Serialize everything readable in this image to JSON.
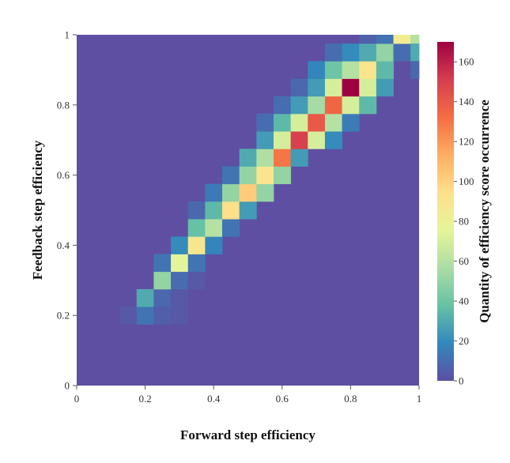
{
  "chart_data": {
    "type": "heatmap",
    "title": "",
    "xlabel": "Forward step efficiency",
    "ylabel": "Feedback step efficiency",
    "colorbar_label": "Quantity of efficiency score occurrence",
    "xlim": [
      0,
      1
    ],
    "ylim": [
      0,
      1
    ],
    "x_ticks": [
      "0",
      "0.2",
      "0.4",
      "0.6",
      "0.8",
      "1"
    ],
    "y_ticks": [
      "0",
      "0.2",
      "0.4",
      "0.6",
      "0.8",
      "1"
    ],
    "colorbar_range": [
      0,
      170
    ],
    "colorbar_ticks": [
      "0",
      "20",
      "40",
      "60",
      "80",
      "100",
      "120",
      "140",
      "160"
    ],
    "colorscale": "Spectral (reversed)",
    "grid": false,
    "bins": 20,
    "cells": [
      [
        0.15,
        0.2,
        3
      ],
      [
        0.2,
        0.2,
        12
      ],
      [
        0.25,
        0.2,
        5
      ],
      [
        0.3,
        0.2,
        3
      ],
      [
        0.2,
        0.25,
        30
      ],
      [
        0.25,
        0.25,
        8
      ],
      [
        0.3,
        0.25,
        3
      ],
      [
        0.25,
        0.3,
        50
      ],
      [
        0.3,
        0.3,
        10
      ],
      [
        0.35,
        0.3,
        3
      ],
      [
        0.25,
        0.35,
        12
      ],
      [
        0.3,
        0.35,
        75
      ],
      [
        0.35,
        0.35,
        12
      ],
      [
        0.3,
        0.4,
        20
      ],
      [
        0.35,
        0.4,
        88
      ],
      [
        0.4,
        0.4,
        18
      ],
      [
        0.35,
        0.45,
        38
      ],
      [
        0.4,
        0.45,
        60
      ],
      [
        0.45,
        0.45,
        12
      ],
      [
        0.35,
        0.5,
        8
      ],
      [
        0.4,
        0.5,
        35
      ],
      [
        0.45,
        0.5,
        95
      ],
      [
        0.5,
        0.5,
        25
      ],
      [
        0.4,
        0.55,
        14
      ],
      [
        0.45,
        0.55,
        50
      ],
      [
        0.5,
        0.55,
        102
      ],
      [
        0.55,
        0.55,
        50
      ],
      [
        0.45,
        0.6,
        12
      ],
      [
        0.5,
        0.6,
        50
      ],
      [
        0.55,
        0.6,
        90
      ],
      [
        0.6,
        0.6,
        50
      ],
      [
        0.5,
        0.65,
        30
      ],
      [
        0.55,
        0.65,
        58
      ],
      [
        0.6,
        0.65,
        130
      ],
      [
        0.65,
        0.65,
        25
      ],
      [
        0.55,
        0.7,
        25
      ],
      [
        0.6,
        0.7,
        70
      ],
      [
        0.65,
        0.7,
        150
      ],
      [
        0.7,
        0.7,
        70
      ],
      [
        0.75,
        0.7,
        20
      ],
      [
        0.55,
        0.75,
        10
      ],
      [
        0.6,
        0.75,
        35
      ],
      [
        0.65,
        0.75,
        70
      ],
      [
        0.7,
        0.75,
        140
      ],
      [
        0.75,
        0.75,
        60
      ],
      [
        0.8,
        0.75,
        15
      ],
      [
        0.6,
        0.8,
        10
      ],
      [
        0.65,
        0.8,
        25
      ],
      [
        0.7,
        0.8,
        55
      ],
      [
        0.75,
        0.8,
        135
      ],
      [
        0.8,
        0.8,
        70
      ],
      [
        0.85,
        0.8,
        35
      ],
      [
        0.65,
        0.85,
        8
      ],
      [
        0.7,
        0.85,
        25
      ],
      [
        0.75,
        0.85,
        70
      ],
      [
        0.8,
        0.85,
        170
      ],
      [
        0.85,
        0.85,
        70
      ],
      [
        0.9,
        0.85,
        25
      ],
      [
        0.7,
        0.9,
        18
      ],
      [
        0.75,
        0.9,
        40
      ],
      [
        0.8,
        0.9,
        60
      ],
      [
        0.85,
        0.9,
        90
      ],
      [
        0.9,
        0.9,
        35
      ],
      [
        0.75,
        0.95,
        10
      ],
      [
        0.8,
        0.95,
        20
      ],
      [
        0.85,
        0.95,
        30
      ],
      [
        0.9,
        0.95,
        50
      ],
      [
        0.95,
        0.95,
        10
      ],
      [
        0.85,
        1.0,
        6
      ],
      [
        0.9,
        1.0,
        12
      ],
      [
        0.95,
        1.0,
        85
      ],
      [
        1.0,
        1.0,
        60
      ],
      [
        1.0,
        0.95,
        30
      ],
      [
        1.0,
        0.9,
        8
      ]
    ]
  }
}
